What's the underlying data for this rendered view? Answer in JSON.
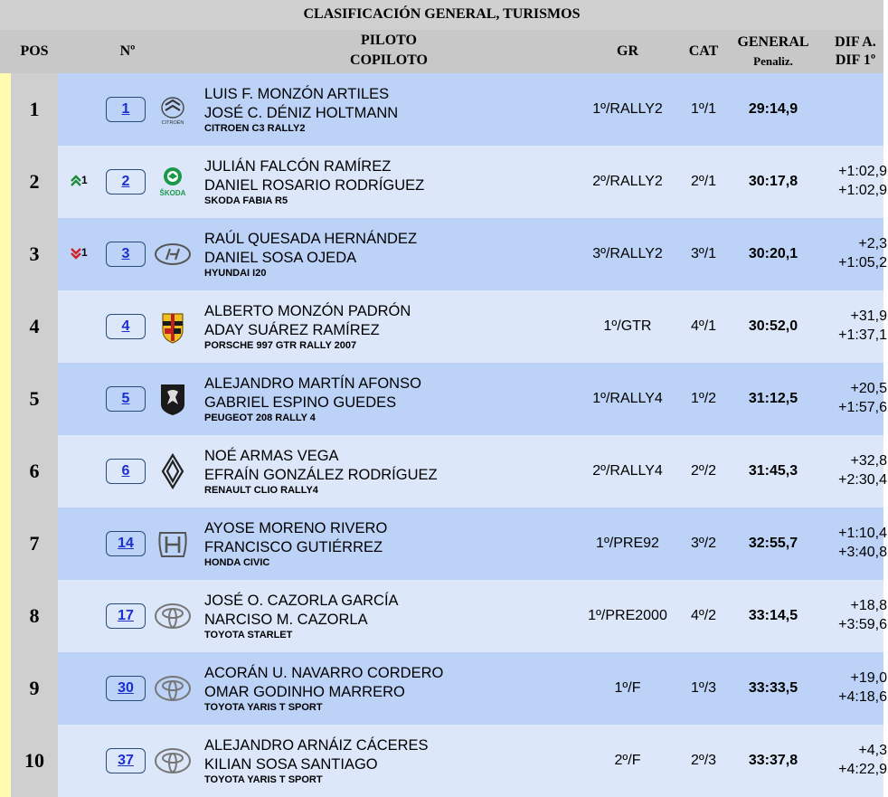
{
  "title": "CLASIFICACIÓN GENERAL, TURISMOS",
  "headers": {
    "pos": "POS",
    "num": "Nº",
    "piloto": "PILOTO",
    "copiloto": "COPILOTO",
    "gr": "GR",
    "cat": "CAT",
    "general": "GENERAL",
    "penaliz": "Penaliz.",
    "dif_a": "DIF A.",
    "dif_1": "DIF 1º"
  },
  "rows": [
    {
      "pos": "1",
      "change": "",
      "change_dir": "",
      "num": "1",
      "logo": "citroen-logo",
      "logo_text": "CITROËN",
      "pilot": "LUIS F. MONZÓN ARTILES",
      "copilot": "JOSÉ C. DÉNIZ HOLTMANN",
      "car": "CITROEN C3 RALLY2",
      "gr": "1º/RALLY2",
      "cat": "1º/1",
      "general": "29:14,9",
      "dif_a": "",
      "dif_1": ""
    },
    {
      "pos": "2",
      "change": "1",
      "change_dir": "up",
      "num": "2",
      "logo": "skoda-logo",
      "logo_text": "ŠKODA",
      "pilot": "JULIÁN FALCÓN RAMÍREZ",
      "copilot": "DANIEL ROSARIO RODRÍGUEZ",
      "car": "SKODA FABIA R5",
      "gr": "2º/RALLY2",
      "cat": "2º/1",
      "general": "30:17,8",
      "dif_a": "+1:02,9",
      "dif_1": "+1:02,9"
    },
    {
      "pos": "3",
      "change": "1",
      "change_dir": "down",
      "num": "3",
      "logo": "hyundai-logo",
      "logo_text": "",
      "pilot": "RAÚL QUESADA HERNÁNDEZ",
      "copilot": "DANIEL SOSA OJEDA",
      "car": "HYUNDAI I20",
      "gr": "3º/RALLY2",
      "cat": "3º/1",
      "general": "30:20,1",
      "dif_a": "+2,3",
      "dif_1": "+1:05,2"
    },
    {
      "pos": "4",
      "change": "",
      "change_dir": "",
      "num": "4",
      "logo": "porsche-logo",
      "logo_text": "",
      "pilot": "ALBERTO MONZÓN PADRÓN",
      "copilot": "ADAY SUÁREZ RAMÍREZ",
      "car": "PORSCHE 997 GTR RALLY 2007",
      "gr": "1º/GTR",
      "cat": "4º/1",
      "general": "30:52,0",
      "dif_a": "+31,9",
      "dif_1": "+1:37,1"
    },
    {
      "pos": "5",
      "change": "",
      "change_dir": "",
      "num": "5",
      "logo": "peugeot-logo",
      "logo_text": "",
      "pilot": "ALEJANDRO MARTÍN AFONSO",
      "copilot": "GABRIEL ESPINO GUEDES",
      "car": "PEUGEOT 208 RALLY 4",
      "gr": "1º/RALLY4",
      "cat": "1º/2",
      "general": "31:12,5",
      "dif_a": "+20,5",
      "dif_1": "+1:57,6"
    },
    {
      "pos": "6",
      "change": "",
      "change_dir": "",
      "num": "6",
      "logo": "renault-logo",
      "logo_text": "",
      "pilot": "NOÉ ARMAS VEGA",
      "copilot": "EFRAÍN GONZÁLEZ RODRÍGUEZ",
      "car": "RENAULT CLIO RALLY4",
      "gr": "2º/RALLY4",
      "cat": "2º/2",
      "general": "31:45,3",
      "dif_a": "+32,8",
      "dif_1": "+2:30,4"
    },
    {
      "pos": "7",
      "change": "",
      "change_dir": "",
      "num": "14",
      "logo": "honda-logo",
      "logo_text": "",
      "pilot": "AYOSE MORENO RIVERO",
      "copilot": "FRANCISCO GUTIÉRREZ",
      "car": "HONDA CIVIC",
      "gr": "1º/PRE92",
      "cat": "3º/2",
      "general": "32:55,7",
      "dif_a": "+1:10,4",
      "dif_1": "+3:40,8"
    },
    {
      "pos": "8",
      "change": "",
      "change_dir": "",
      "num": "17",
      "logo": "toyota-logo",
      "logo_text": "",
      "pilot": "JOSÉ O. CAZORLA GARCÍA",
      "copilot": "NARCISO M. CAZORLA",
      "car": "TOYOTA STARLET",
      "gr": "1º/PRE2000",
      "cat": "4º/2",
      "general": "33:14,5",
      "dif_a": "+18,8",
      "dif_1": "+3:59,6"
    },
    {
      "pos": "9",
      "change": "",
      "change_dir": "",
      "num": "30",
      "logo": "toyota-logo",
      "logo_text": "",
      "pilot": "ACORÁN U. NAVARRO CORDERO",
      "copilot": "OMAR GODINHO MARRERO",
      "car": "TOYOTA YARIS T SPORT",
      "gr": "1º/F",
      "cat": "1º/3",
      "general": "33:33,5",
      "dif_a": "+19,0",
      "dif_1": "+4:18,6"
    },
    {
      "pos": "10",
      "change": "",
      "change_dir": "",
      "num": "37",
      "logo": "toyota-logo",
      "logo_text": "",
      "pilot": "ALEJANDRO ARNÁIZ CÁCERES",
      "copilot": "KILIAN SOSA SANTIAGO",
      "car": "TOYOTA YARIS T SPORT",
      "gr": "2º/F",
      "cat": "2º/3",
      "general": "33:37,8",
      "dif_a": "+4,3",
      "dif_1": "+4:22,9"
    }
  ],
  "colors": {
    "row_odd": "#bcd2f7",
    "row_even": "#dce7fa",
    "pos_cell": "#cfcfcf",
    "stripe": "#fffcb0",
    "link": "#1a2fcc",
    "up": "#1f8a3a",
    "down": "#d0202a"
  }
}
